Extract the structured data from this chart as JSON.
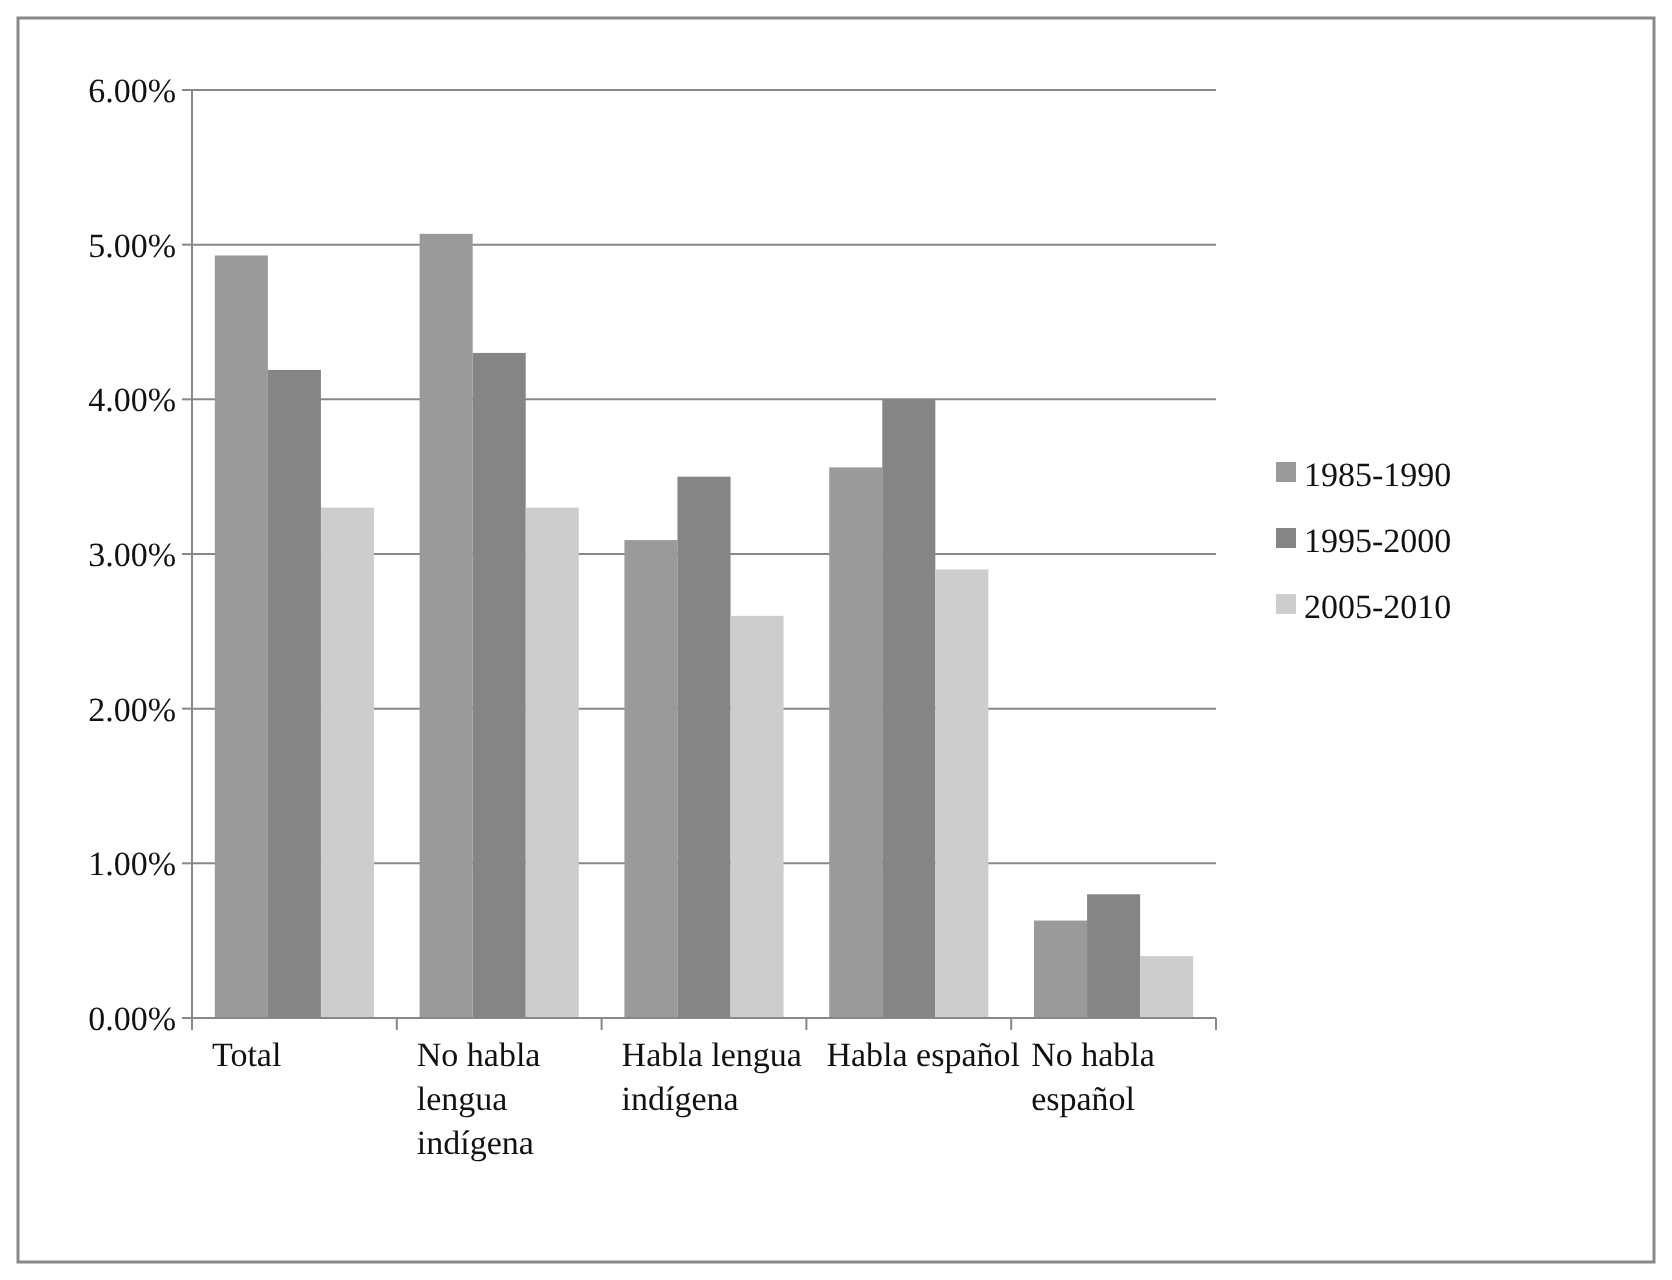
{
  "chart_data": {
    "type": "bar",
    "categories": [
      "Total",
      "No habla lengua indígena",
      "Habla lengua indígena",
      "Habla español",
      "No habla español"
    ],
    "series": [
      {
        "name": "1985-1990",
        "color": "#9a9a9a",
        "values": [
          4.93,
          5.07,
          3.09,
          3.56,
          0.63
        ]
      },
      {
        "name": "1995-2000",
        "color": "#858585",
        "values": [
          4.19,
          4.3,
          3.5,
          4.0,
          0.8
        ]
      },
      {
        "name": "2005-2010",
        "color": "#cdcdcd",
        "values": [
          3.3,
          3.3,
          2.6,
          2.9,
          0.4
        ]
      }
    ],
    "ylim": [
      0,
      6
    ],
    "yticks": [
      {
        "value": 0,
        "label": "0.00%"
      },
      {
        "value": 1,
        "label": "1.00%"
      },
      {
        "value": 2,
        "label": "2.00%"
      },
      {
        "value": 3,
        "label": "3.00%"
      },
      {
        "value": 4,
        "label": "4.00%"
      },
      {
        "value": 5,
        "label": "5.00%"
      },
      {
        "value": 6,
        "label": "6.00%"
      }
    ],
    "grid": "y",
    "legend": "right"
  }
}
